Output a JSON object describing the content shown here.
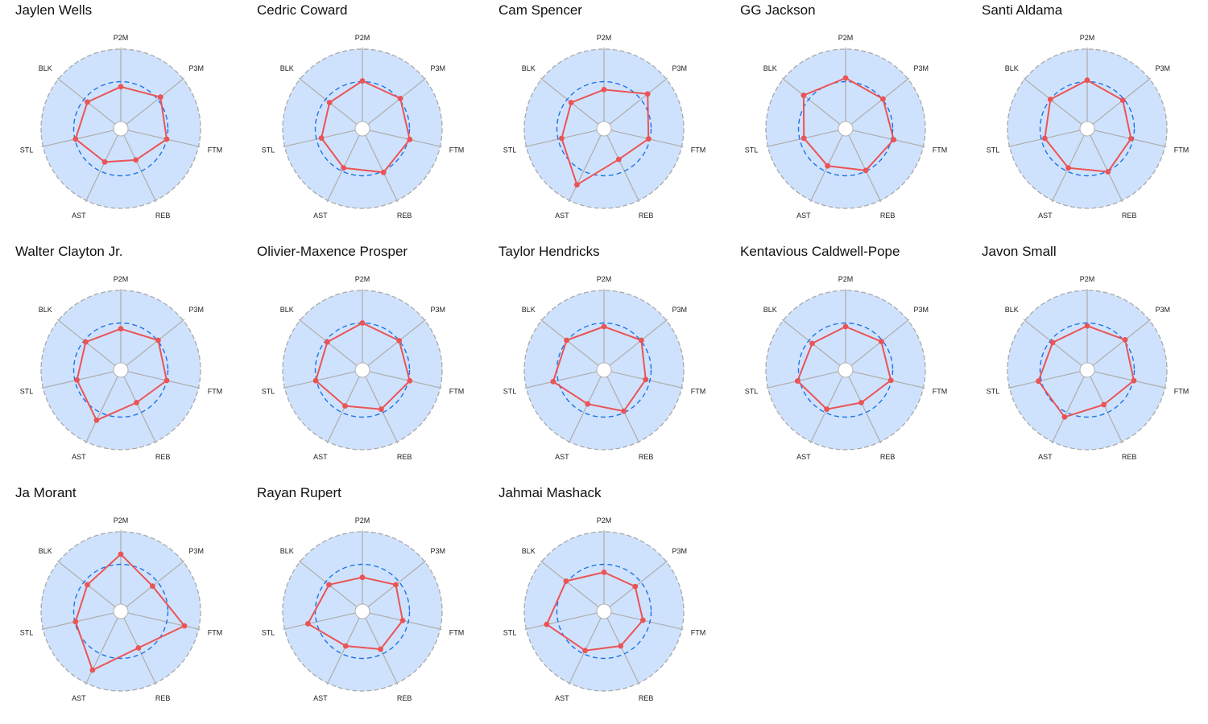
{
  "colors": {
    "panel_background": "#cfe2fd",
    "outer_ring": "#a9a9a9",
    "spokes": "#b0b0b0",
    "reference_circle": "#1a73e8",
    "player_line": "#ea5455"
  },
  "chart_data": {
    "type": "radar",
    "axes": [
      "P2M",
      "P3M",
      "FTM",
      "REB",
      "AST",
      "STL",
      "BLK"
    ],
    "reference_level": 0.55,
    "range": [
      0,
      1
    ],
    "grid": false,
    "legend": "none",
    "players": [
      {
        "name": "Jaylen Wells",
        "values": [
          0.48,
          0.6,
          0.55,
          0.38,
          0.41,
          0.54,
          0.49
        ]
      },
      {
        "name": "Cedric Coward",
        "values": [
          0.56,
          0.57,
          0.57,
          0.57,
          0.5,
          0.48,
          0.48
        ]
      },
      {
        "name": "Cam Spencer",
        "values": [
          0.44,
          0.67,
          0.53,
          0.37,
          0.76,
          0.5,
          0.48
        ]
      },
      {
        "name": "GG Jackson",
        "values": [
          0.6,
          0.56,
          0.58,
          0.54,
          0.47,
          0.49,
          0.64
        ]
      },
      {
        "name": "Santi Aldama",
        "values": [
          0.57,
          0.53,
          0.52,
          0.56,
          0.5,
          0.5,
          0.55
        ]
      },
      {
        "name": "Walter Clayton Jr.",
        "values": [
          0.47,
          0.56,
          0.55,
          0.4,
          0.67,
          0.52,
          0.52
        ]
      },
      {
        "name": "Olivier-Maxence Prosper",
        "values": [
          0.55,
          0.55,
          0.57,
          0.5,
          0.45,
          0.56,
          0.52
        ]
      },
      {
        "name": "Taylor Hendricks",
        "values": [
          0.5,
          0.56,
          0.49,
          0.53,
          0.42,
          0.62,
          0.56
        ]
      },
      {
        "name": "Kentavious Caldwell-Pope",
        "values": [
          0.5,
          0.53,
          0.54,
          0.4,
          0.5,
          0.58,
          0.49
        ]
      },
      {
        "name": "Javon Small",
        "values": [
          0.51,
          0.57,
          0.56,
          0.43,
          0.62,
          0.59,
          0.51
        ]
      },
      {
        "name": "Ja Morant",
        "values": [
          0.69,
          0.46,
          0.8,
          0.46,
          0.8,
          0.54,
          0.49
        ]
      },
      {
        "name": "Rayan Rupert",
        "values": [
          0.37,
          0.49,
          0.47,
          0.48,
          0.43,
          0.67,
          0.49
        ]
      },
      {
        "name": "Jahmai Mashack",
        "values": [
          0.44,
          0.45,
          0.45,
          0.43,
          0.5,
          0.71,
          0.57
        ]
      }
    ]
  }
}
